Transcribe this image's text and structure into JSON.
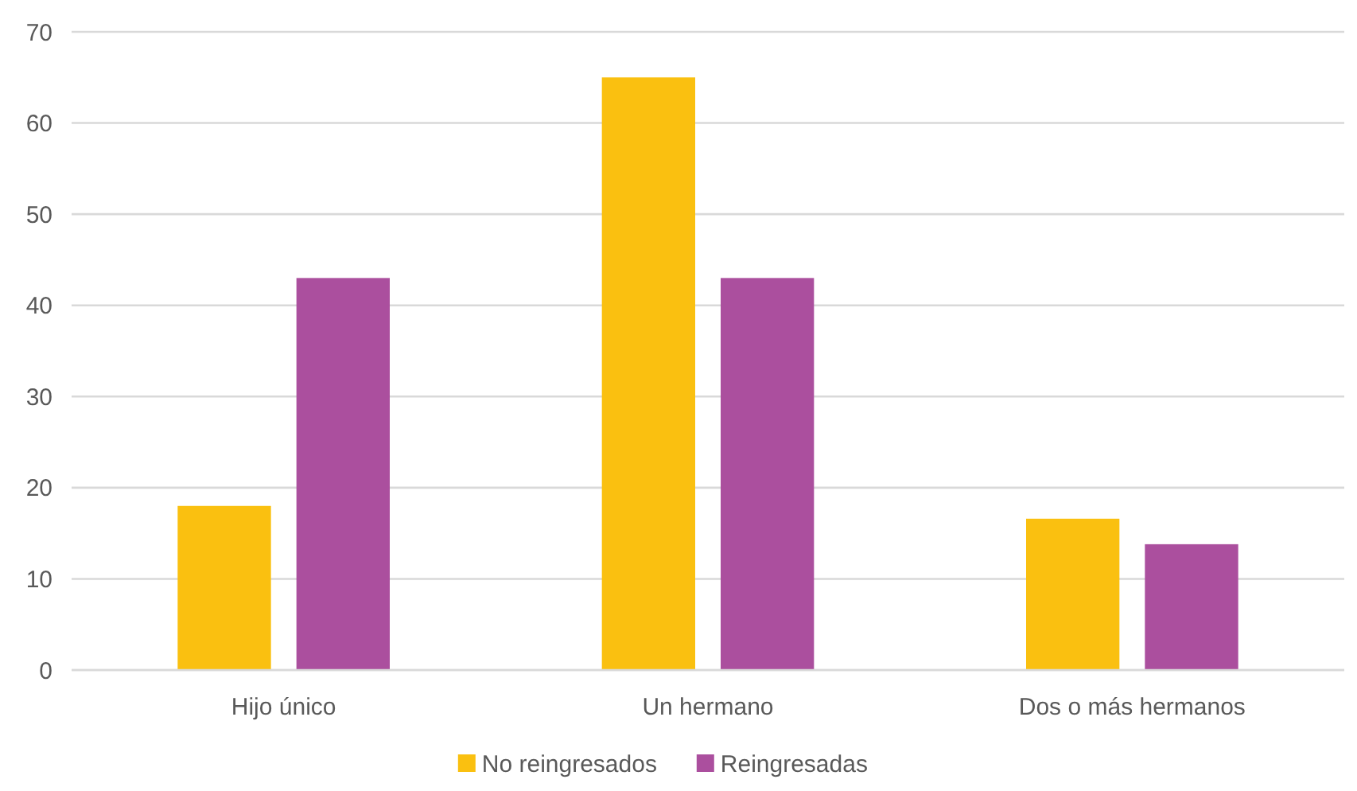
{
  "chart_data": {
    "type": "bar",
    "categories": [
      "Hijo único",
      "Un hermano",
      "Dos o más hermanos"
    ],
    "series": [
      {
        "name": "No reingresados",
        "color": "#fac010",
        "values": [
          18,
          65,
          16.6
        ]
      },
      {
        "name": "Reingresadas",
        "color": "#ab4f9e",
        "values": [
          43,
          43,
          13.8
        ]
      }
    ],
    "ylim": [
      0,
      70
    ],
    "yticks": [
      0,
      10,
      20,
      30,
      40,
      50,
      60,
      70
    ],
    "grid": "y",
    "legend": "bottom"
  }
}
